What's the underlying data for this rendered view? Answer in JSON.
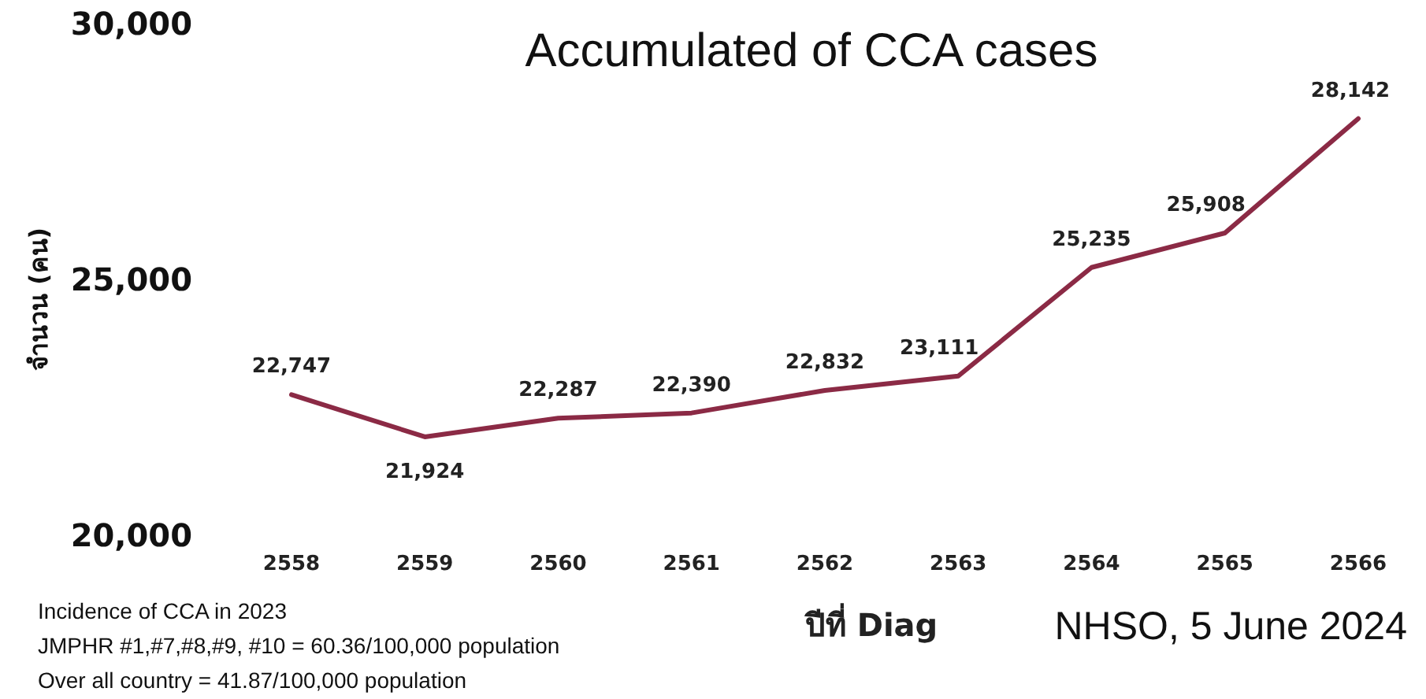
{
  "chart_data": {
    "type": "line",
    "title": "Accumulated of CCA cases",
    "xlabel": "ปีที่ Diag",
    "ylabel": "จำนวน (คน)",
    "categories": [
      "2558",
      "2559",
      "2560",
      "2561",
      "2562",
      "2563",
      "2564",
      "2565",
      "2566"
    ],
    "series": [
      {
        "color": "#8b2a45",
        "values": [
          22747,
          21924,
          22287,
          22390,
          22832,
          23111,
          25235,
          25908,
          28142
        ],
        "value_labels": [
          "22,747",
          "21,924",
          "22,287",
          "22,390",
          "22,832",
          "23,111",
          "25,235",
          "25,908",
          "28,142"
        ]
      }
    ],
    "ylim": [
      20000,
      30000
    ],
    "yticks": [
      {
        "value": 20000,
        "label": "20,000"
      },
      {
        "value": 25000,
        "label": "25,000"
      },
      {
        "value": 30000,
        "label": "30,000"
      }
    ],
    "grid": false,
    "marker": "none",
    "line_style": "solid",
    "annotations": [
      "Incidence of CCA in 2023",
      "JMPHR #1,#7,#8,#9, #10 = 60.36/100,000 population",
      "Over all country  = 41.87/100,000 population",
      "NHSO, 5 June 2024"
    ]
  }
}
